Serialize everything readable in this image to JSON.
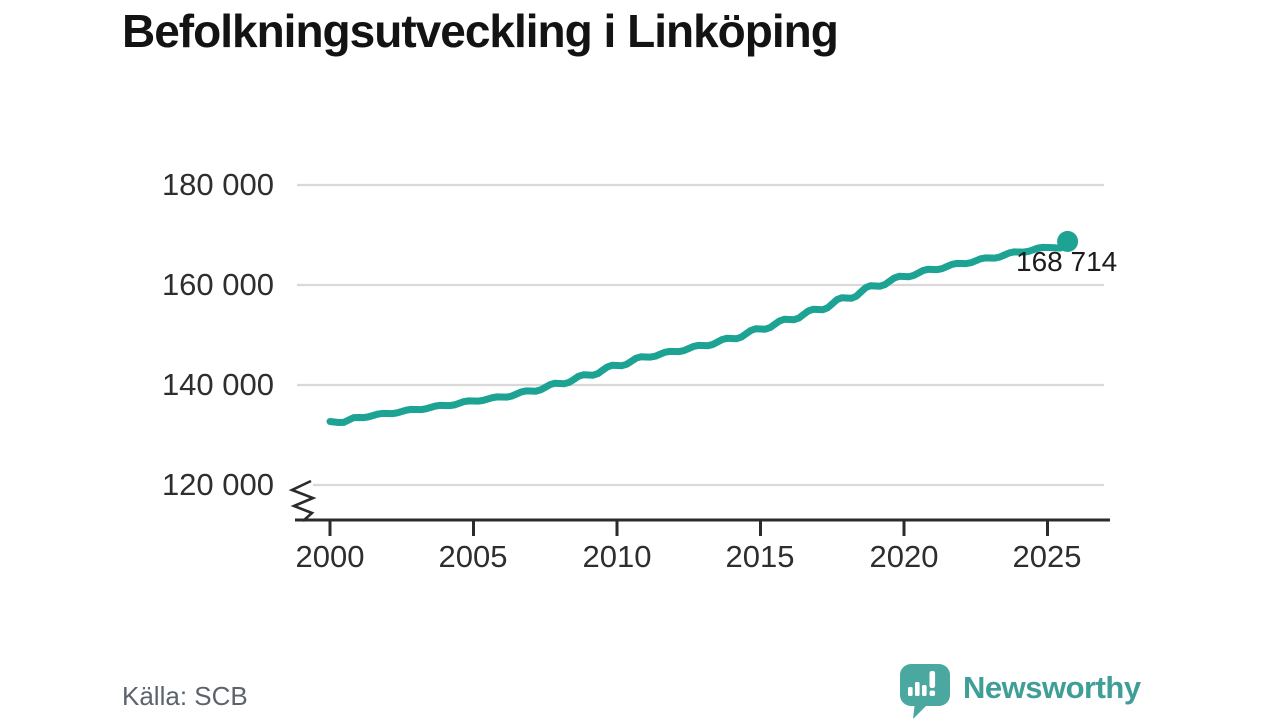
{
  "title": "Befolkningsutveckling i Linköping",
  "source": "Källa: SCB",
  "brand": {
    "name": "Newsworthy",
    "logo_icon": "speech-bubble-bar-chart-icon"
  },
  "colors": {
    "line": "#1ca394",
    "grid": "#d9d9d9",
    "axis": "#2b2b2b",
    "tick_text": "#2e2e2e",
    "title_text": "#131313",
    "muted_text": "#5c636e",
    "brand_logo": "#4ba8a1",
    "brand_text": "#3f9e96"
  },
  "chart_data": {
    "type": "line",
    "title": "Befolkningsutveckling i Linköping",
    "xlabel": "",
    "ylabel": "",
    "ylim": [
      120000,
      180000
    ],
    "xlim": [
      2000,
      2026
    ],
    "grid": "horizontal",
    "y_axis_break": true,
    "legend": "none",
    "y_tick_labels": [
      "180 000",
      "160 000",
      "140 000",
      "120 000"
    ],
    "x_tick_labels": [
      "2000",
      "2005",
      "2010",
      "2015",
      "2020",
      "2025"
    ],
    "y_grid_values": [
      120000,
      140000,
      160000,
      180000
    ],
    "x_tick_years": [
      2000,
      2005,
      2010,
      2015,
      2020,
      2025
    ],
    "end_label": "168 714",
    "end_value": 168714,
    "series": [
      {
        "name": "Befolkning i Linköping",
        "points": [
          [
            2000.0,
            132700
          ],
          [
            2000.3,
            132500
          ],
          [
            2001,
            133500
          ],
          [
            2002,
            134300
          ],
          [
            2003,
            135100
          ],
          [
            2004,
            135900
          ],
          [
            2005,
            136800
          ],
          [
            2006,
            137600
          ],
          [
            2007,
            138800
          ],
          [
            2008,
            140300
          ],
          [
            2009,
            142000
          ],
          [
            2010,
            143900
          ],
          [
            2011,
            145600
          ],
          [
            2012,
            146700
          ],
          [
            2013,
            147900
          ],
          [
            2014,
            149300
          ],
          [
            2015,
            151200
          ],
          [
            2016,
            153100
          ],
          [
            2017,
            155100
          ],
          [
            2018,
            157400
          ],
          [
            2019,
            159800
          ],
          [
            2020,
            161700
          ],
          [
            2021,
            163100
          ],
          [
            2022,
            164300
          ],
          [
            2023,
            165400
          ],
          [
            2024,
            166600
          ],
          [
            2025,
            167500
          ],
          [
            2025.45,
            167400
          ],
          [
            2025.7,
            168714
          ]
        ]
      }
    ]
  }
}
